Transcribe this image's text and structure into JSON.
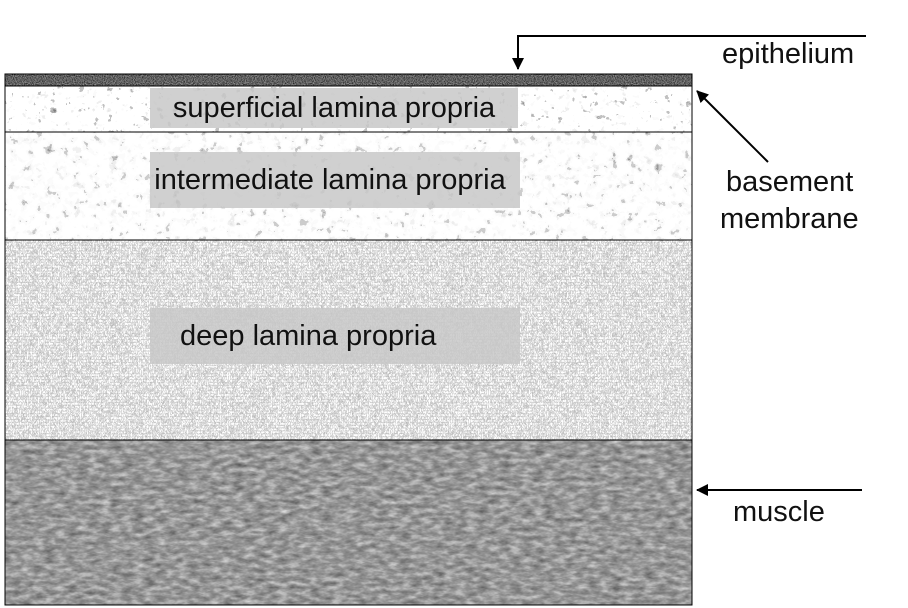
{
  "layers": {
    "superficial": "superficial lamina propria",
    "intermediate": "intermediate lamina propria",
    "deep": "deep lamina propria"
  },
  "annotations": {
    "epithelium": "epithelium",
    "basement_line1": "basement",
    "basement_line2": "membrane",
    "muscle": "muscle"
  },
  "colors": {
    "epithelium": "#8a8a8a",
    "superficial": "#e6e6e6",
    "intermediate": "#ececec",
    "deep": "#b5b5b5",
    "muscle": "#3c3c3c",
    "label_box": "#c8c8c8",
    "line": "#000000"
  }
}
